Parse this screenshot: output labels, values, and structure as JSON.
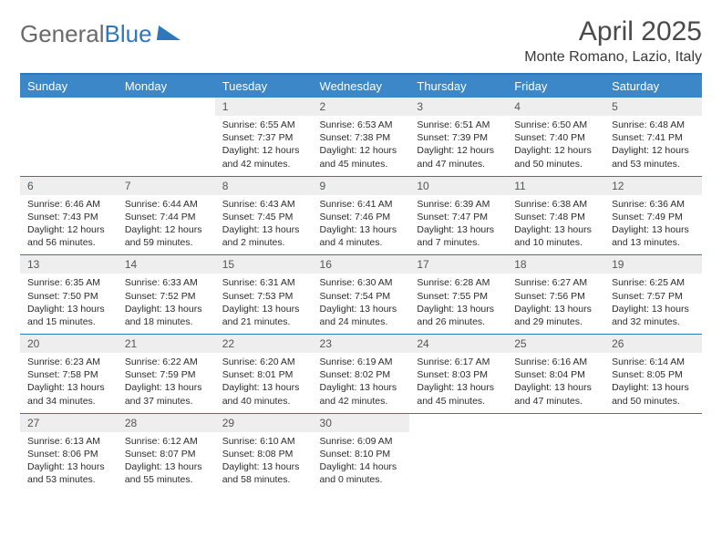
{
  "brand": {
    "part1": "General",
    "part2": "Blue"
  },
  "title": "April 2025",
  "location": "Monte Romano, Lazio, Italy",
  "colors": {
    "accent": "#2f77bc",
    "header_bg": "#3b87c8",
    "daynum_bg": "#eeeeee",
    "text": "#222222"
  },
  "weekdays": [
    "Sunday",
    "Monday",
    "Tuesday",
    "Wednesday",
    "Thursday",
    "Friday",
    "Saturday"
  ],
  "weeks": [
    [
      {
        "blank": true
      },
      {
        "blank": true
      },
      {
        "n": "1",
        "sunrise": "6:55 AM",
        "sunset": "7:37 PM",
        "daylight": "12 hours and 42 minutes."
      },
      {
        "n": "2",
        "sunrise": "6:53 AM",
        "sunset": "7:38 PM",
        "daylight": "12 hours and 45 minutes."
      },
      {
        "n": "3",
        "sunrise": "6:51 AM",
        "sunset": "7:39 PM",
        "daylight": "12 hours and 47 minutes."
      },
      {
        "n": "4",
        "sunrise": "6:50 AM",
        "sunset": "7:40 PM",
        "daylight": "12 hours and 50 minutes."
      },
      {
        "n": "5",
        "sunrise": "6:48 AM",
        "sunset": "7:41 PM",
        "daylight": "12 hours and 53 minutes."
      }
    ],
    [
      {
        "n": "6",
        "sunrise": "6:46 AM",
        "sunset": "7:43 PM",
        "daylight": "12 hours and 56 minutes."
      },
      {
        "n": "7",
        "sunrise": "6:44 AM",
        "sunset": "7:44 PM",
        "daylight": "12 hours and 59 minutes."
      },
      {
        "n": "8",
        "sunrise": "6:43 AM",
        "sunset": "7:45 PM",
        "daylight": "13 hours and 2 minutes."
      },
      {
        "n": "9",
        "sunrise": "6:41 AM",
        "sunset": "7:46 PM",
        "daylight": "13 hours and 4 minutes."
      },
      {
        "n": "10",
        "sunrise": "6:39 AM",
        "sunset": "7:47 PM",
        "daylight": "13 hours and 7 minutes."
      },
      {
        "n": "11",
        "sunrise": "6:38 AM",
        "sunset": "7:48 PM",
        "daylight": "13 hours and 10 minutes."
      },
      {
        "n": "12",
        "sunrise": "6:36 AM",
        "sunset": "7:49 PM",
        "daylight": "13 hours and 13 minutes."
      }
    ],
    [
      {
        "n": "13",
        "sunrise": "6:35 AM",
        "sunset": "7:50 PM",
        "daylight": "13 hours and 15 minutes."
      },
      {
        "n": "14",
        "sunrise": "6:33 AM",
        "sunset": "7:52 PM",
        "daylight": "13 hours and 18 minutes."
      },
      {
        "n": "15",
        "sunrise": "6:31 AM",
        "sunset": "7:53 PM",
        "daylight": "13 hours and 21 minutes."
      },
      {
        "n": "16",
        "sunrise": "6:30 AM",
        "sunset": "7:54 PM",
        "daylight": "13 hours and 24 minutes."
      },
      {
        "n": "17",
        "sunrise": "6:28 AM",
        "sunset": "7:55 PM",
        "daylight": "13 hours and 26 minutes."
      },
      {
        "n": "18",
        "sunrise": "6:27 AM",
        "sunset": "7:56 PM",
        "daylight": "13 hours and 29 minutes."
      },
      {
        "n": "19",
        "sunrise": "6:25 AM",
        "sunset": "7:57 PM",
        "daylight": "13 hours and 32 minutes."
      }
    ],
    [
      {
        "n": "20",
        "sunrise": "6:23 AM",
        "sunset": "7:58 PM",
        "daylight": "13 hours and 34 minutes."
      },
      {
        "n": "21",
        "sunrise": "6:22 AM",
        "sunset": "7:59 PM",
        "daylight": "13 hours and 37 minutes."
      },
      {
        "n": "22",
        "sunrise": "6:20 AM",
        "sunset": "8:01 PM",
        "daylight": "13 hours and 40 minutes."
      },
      {
        "n": "23",
        "sunrise": "6:19 AM",
        "sunset": "8:02 PM",
        "daylight": "13 hours and 42 minutes."
      },
      {
        "n": "24",
        "sunrise": "6:17 AM",
        "sunset": "8:03 PM",
        "daylight": "13 hours and 45 minutes."
      },
      {
        "n": "25",
        "sunrise": "6:16 AM",
        "sunset": "8:04 PM",
        "daylight": "13 hours and 47 minutes."
      },
      {
        "n": "26",
        "sunrise": "6:14 AM",
        "sunset": "8:05 PM",
        "daylight": "13 hours and 50 minutes."
      }
    ],
    [
      {
        "n": "27",
        "sunrise": "6:13 AM",
        "sunset": "8:06 PM",
        "daylight": "13 hours and 53 minutes."
      },
      {
        "n": "28",
        "sunrise": "6:12 AM",
        "sunset": "8:07 PM",
        "daylight": "13 hours and 55 minutes."
      },
      {
        "n": "29",
        "sunrise": "6:10 AM",
        "sunset": "8:08 PM",
        "daylight": "13 hours and 58 minutes."
      },
      {
        "n": "30",
        "sunrise": "6:09 AM",
        "sunset": "8:10 PM",
        "daylight": "14 hours and 0 minutes."
      },
      {
        "blank": true
      },
      {
        "blank": true
      },
      {
        "blank": true
      }
    ]
  ],
  "labels": {
    "sunrise": "Sunrise:",
    "sunset": "Sunset:",
    "daylight": "Daylight:"
  }
}
